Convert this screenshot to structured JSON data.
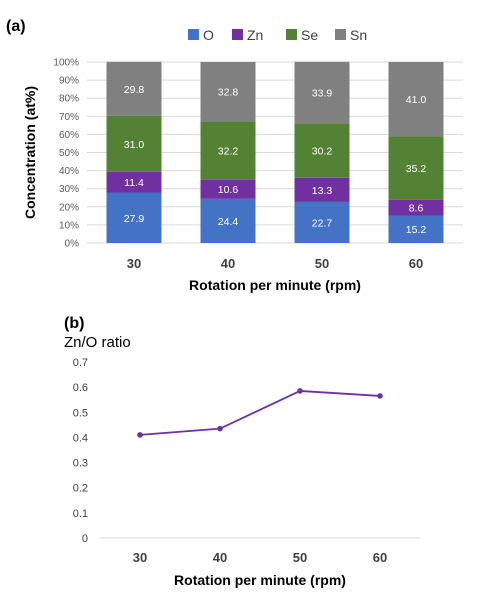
{
  "chart_data": [
    {
      "panel_label": "(a)",
      "type": "bar",
      "stacked": true,
      "categories": [
        "30",
        "40",
        "50",
        "60"
      ],
      "series": [
        {
          "name": "O",
          "color": "#4472c4",
          "values": [
            27.9,
            24.4,
            22.7,
            15.2
          ]
        },
        {
          "name": "Zn",
          "color": "#7030a0",
          "values": [
            11.4,
            10.6,
            13.3,
            8.6
          ]
        },
        {
          "name": "Se",
          "color": "#548235",
          "values": [
            31.0,
            32.2,
            30.2,
            35.2
          ]
        },
        {
          "name": "Sn",
          "color": "#808080",
          "values": [
            29.8,
            32.8,
            33.9,
            41.0
          ]
        }
      ],
      "data_labels": [
        [
          "27.9",
          "24.4",
          "22.7",
          "15.2"
        ],
        [
          "11.4",
          "10.6",
          "13.3",
          "8.6"
        ],
        [
          "31.0",
          "32.2",
          "30.2",
          "35.2"
        ],
        [
          "29.8",
          "32.8",
          "33.9",
          "41.0"
        ]
      ],
      "xlabel": "Rotation per minute (rpm)",
      "ylabel": "Concentration (at%)",
      "yticks": [
        "0%",
        "10%",
        "20%",
        "30%",
        "40%",
        "50%",
        "60%",
        "70%",
        "80%",
        "90%",
        "100%"
      ],
      "ylim": [
        0,
        100
      ],
      "grid": true,
      "legend_position": "top"
    },
    {
      "panel_label": "(b)",
      "type": "line",
      "x": [
        "30",
        "40",
        "50",
        "60"
      ],
      "series": [
        {
          "color": "#7030a0",
          "values": [
            0.41,
            0.435,
            0.585,
            0.565
          ]
        }
      ],
      "title": "Zn/O ratio",
      "xlabel": "Rotation per minute (rpm)",
      "yticks": [
        "0",
        "0.1",
        "0.2",
        "0.3",
        "0.4",
        "0.5",
        "0.6",
        "0.7"
      ],
      "ylim": [
        0,
        0.7
      ],
      "grid": false
    }
  ]
}
